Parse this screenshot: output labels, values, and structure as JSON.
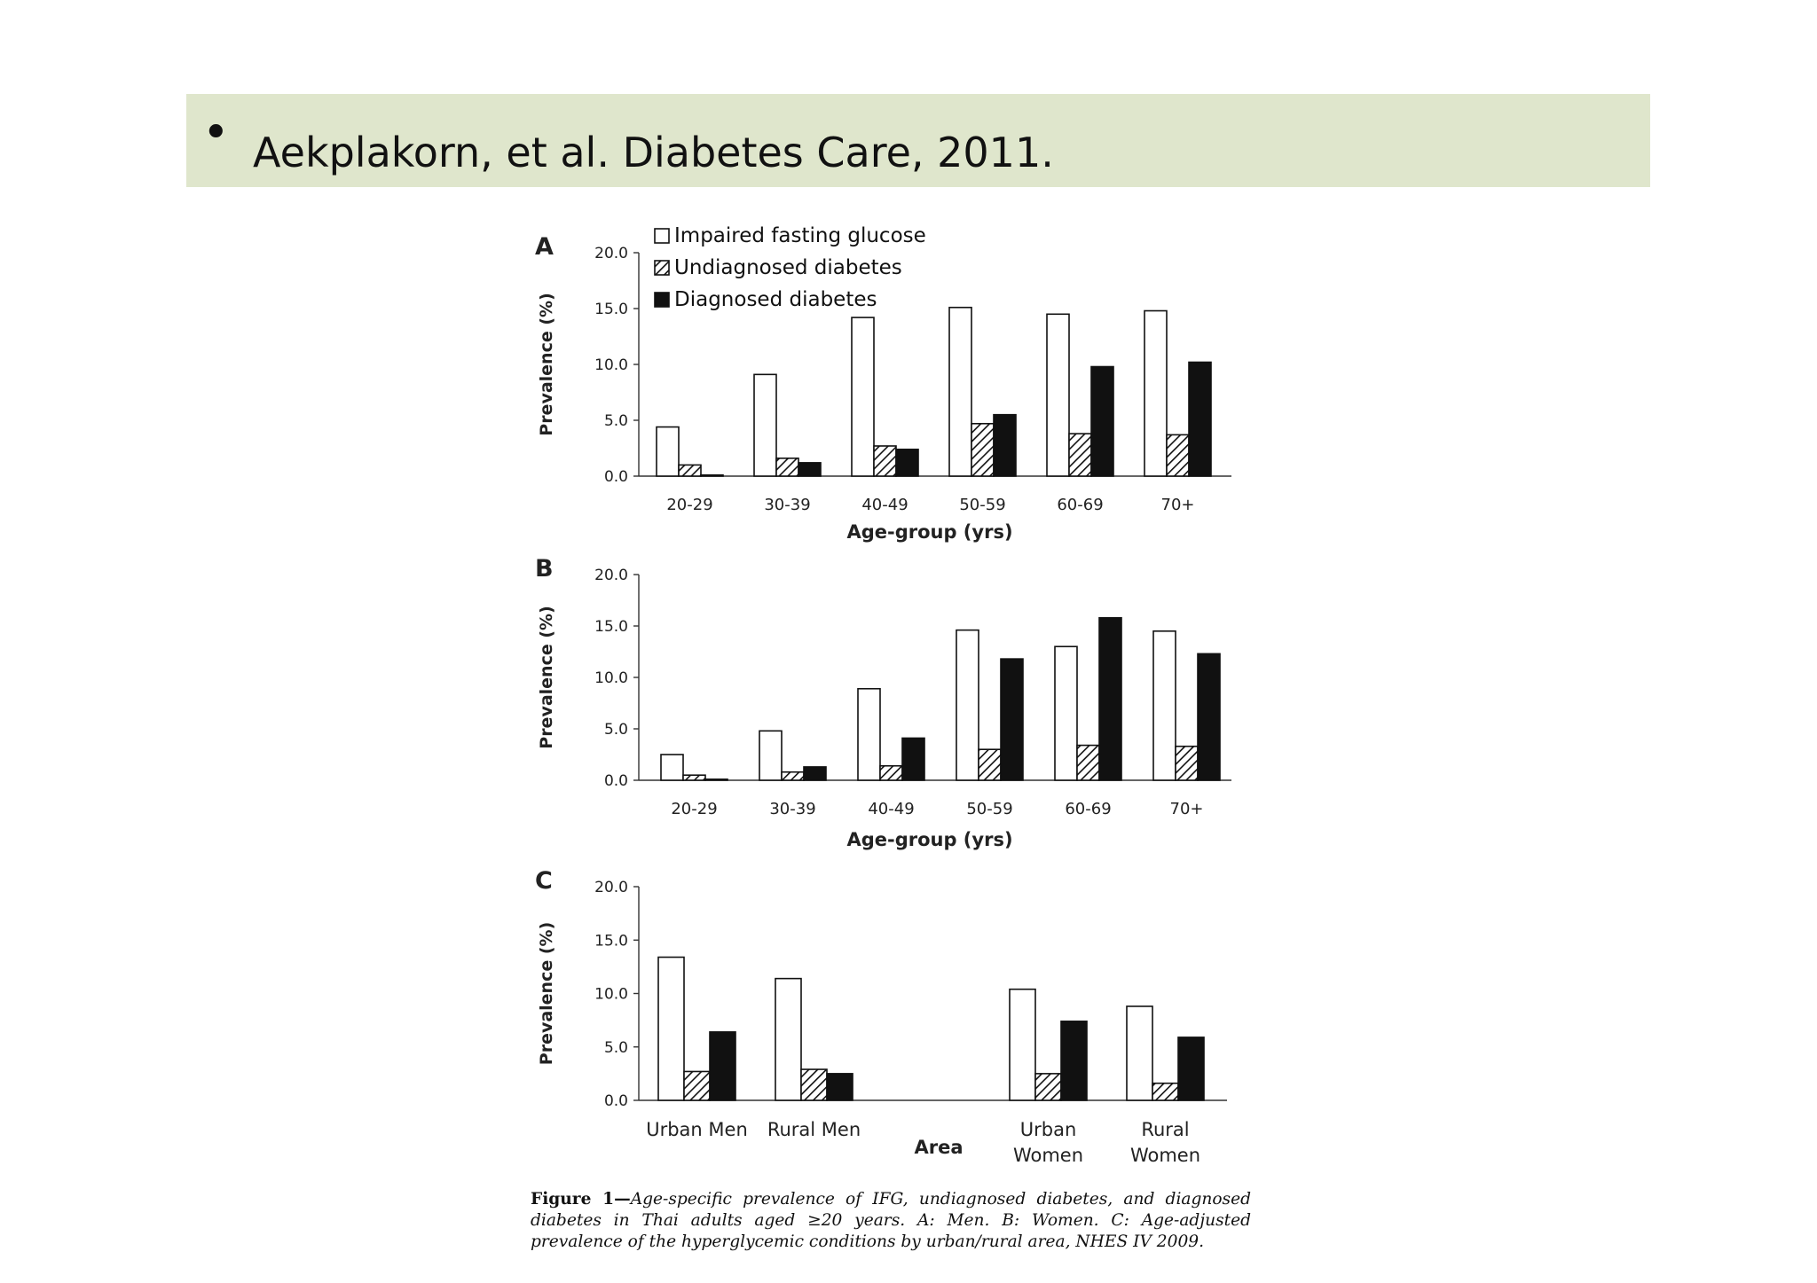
{
  "header": {
    "bullet": "•",
    "citation": "Aekplakorn, et al. Diabetes Care, 2011."
  },
  "legend": {
    "items": [
      {
        "label": "Impaired fasting glucose",
        "pattern": "white"
      },
      {
        "label": "Undiagnosed diabetes",
        "pattern": "hatched"
      },
      {
        "label": "Diagnosed diabetes",
        "pattern": "black"
      }
    ]
  },
  "caption": {
    "lead": "Figure 1—",
    "body": "Age-specific prevalence of IFG, undiagnosed diabetes, and diagnosed diabetes in Thai adults aged ≥20 years. A: Men. B: Women. C: Age-adjusted prevalence of the hyperglycemic conditions by urban/rural area, NHES IV 2009."
  },
  "chart_data": [
    {
      "type": "bar",
      "panel": "A",
      "categories": [
        "20-29",
        "30-39",
        "40-49",
        "50-59",
        "60-69",
        "70+"
      ],
      "series": [
        {
          "name": "Impaired fasting glucose",
          "values": [
            4.4,
            9.1,
            14.2,
            15.1,
            14.5,
            14.8
          ]
        },
        {
          "name": "Undiagnosed diabetes",
          "values": [
            1.0,
            1.6,
            2.7,
            4.7,
            3.8,
            3.7
          ]
        },
        {
          "name": "Diagnosed diabetes",
          "values": [
            0.1,
            1.2,
            2.4,
            5.5,
            9.8,
            10.2
          ]
        }
      ],
      "xlabel": "Age-group (yrs)",
      "ylabel": "Prevalence (%)",
      "ylim": [
        0,
        20
      ],
      "yticks": [
        "0.0",
        "5.0",
        "10.0",
        "15.0",
        "20.0"
      ],
      "legend": "top-left",
      "grid": false
    },
    {
      "type": "bar",
      "panel": "B",
      "categories": [
        "20-29",
        "30-39",
        "40-49",
        "50-59",
        "60-69",
        "70+"
      ],
      "series": [
        {
          "name": "Impaired fasting glucose",
          "values": [
            2.5,
            4.8,
            8.9,
            14.6,
            13.0,
            14.5
          ]
        },
        {
          "name": "Undiagnosed diabetes",
          "values": [
            0.5,
            0.8,
            1.4,
            3.0,
            3.4,
            3.3
          ]
        },
        {
          "name": "Diagnosed diabetes",
          "values": [
            0.1,
            1.3,
            4.1,
            11.8,
            15.8,
            12.3
          ]
        }
      ],
      "xlabel": "Age-group (yrs)",
      "ylabel": "Prevalence (%)",
      "ylim": [
        0,
        20
      ],
      "yticks": [
        "0.0",
        "5.0",
        "10.0",
        "15.0",
        "20.0"
      ],
      "grid": false
    },
    {
      "type": "bar",
      "panel": "C",
      "categories": [
        [
          "Urban Men"
        ],
        [
          "Rural Men"
        ],
        [],
        [
          "Urban",
          "Women"
        ],
        [
          "Rural",
          "Women"
        ]
      ],
      "series": [
        {
          "name": "Impaired fasting glucose",
          "values": [
            13.4,
            11.4,
            null,
            10.4,
            8.8
          ]
        },
        {
          "name": "Undiagnosed diabetes",
          "values": [
            2.7,
            2.9,
            null,
            2.5,
            1.6
          ]
        },
        {
          "name": "Diagnosed diabetes",
          "values": [
            6.4,
            2.5,
            null,
            7.4,
            5.9
          ]
        }
      ],
      "xlabel": "Area",
      "ylabel": "Prevalence (%)",
      "ylim": [
        0,
        20
      ],
      "yticks": [
        "0.0",
        "5.0",
        "10.0",
        "15.0",
        "20.0"
      ],
      "grid": false
    }
  ]
}
